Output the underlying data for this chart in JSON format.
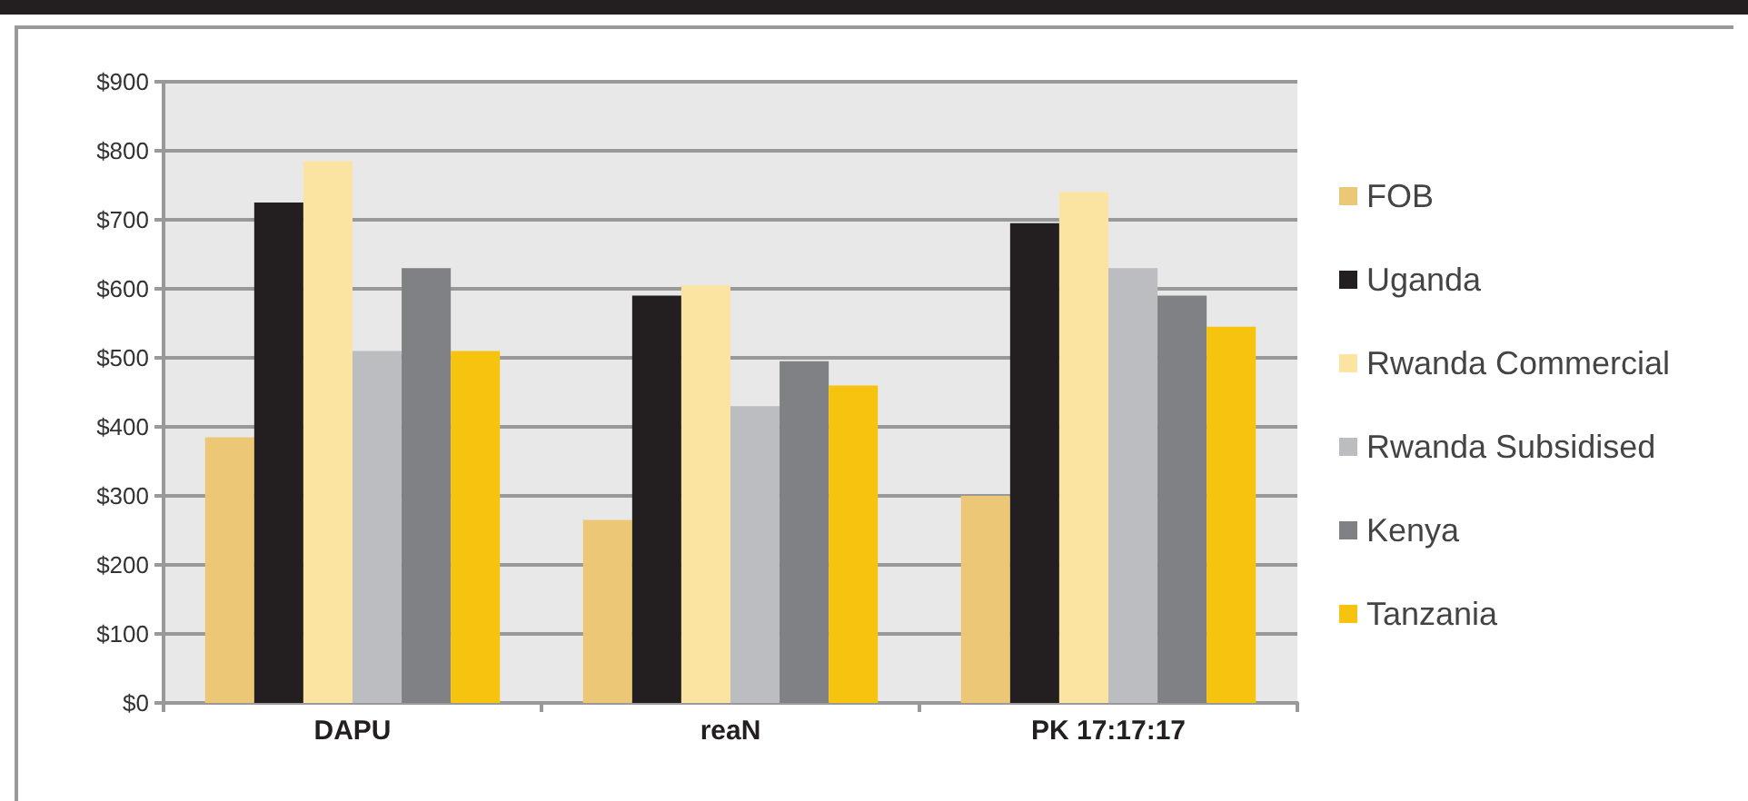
{
  "chart_data": {
    "type": "bar",
    "categories": [
      "DAPU",
      "reaN",
      "PK 17:17:17"
    ],
    "series": [
      {
        "name": "FOB",
        "color": "#ecc776",
        "values": [
          385,
          265,
          300
        ]
      },
      {
        "name": "Uganda",
        "color": "#231f20",
        "values": [
          725,
          590,
          695
        ]
      },
      {
        "name": "Rwanda Commercial",
        "color": "#fbe3a1",
        "values": [
          785,
          605,
          740
        ]
      },
      {
        "name": "Rwanda Subsidised",
        "color": "#bcbdc0",
        "values": [
          510,
          430,
          630
        ]
      },
      {
        "name": "Kenya",
        "color": "#808184",
        "values": [
          630,
          495,
          590
        ]
      },
      {
        "name": "Tanzania",
        "color": "#f6c30f",
        "values": [
          510,
          460,
          545
        ]
      }
    ],
    "ylim": [
      0,
      900
    ],
    "yticks": [
      {
        "value": 0,
        "label": "$0"
      },
      {
        "value": 100,
        "label": "$100"
      },
      {
        "value": 200,
        "label": "$200"
      },
      {
        "value": 300,
        "label": "$300"
      },
      {
        "value": 400,
        "label": "$400"
      },
      {
        "value": 500,
        "label": "$500"
      },
      {
        "value": 600,
        "label": "$600"
      },
      {
        "value": 700,
        "label": "$700"
      },
      {
        "value": 800,
        "label": "$800"
      },
      {
        "value": 900,
        "label": "$900"
      }
    ],
    "grid": "y",
    "legend": "right"
  }
}
